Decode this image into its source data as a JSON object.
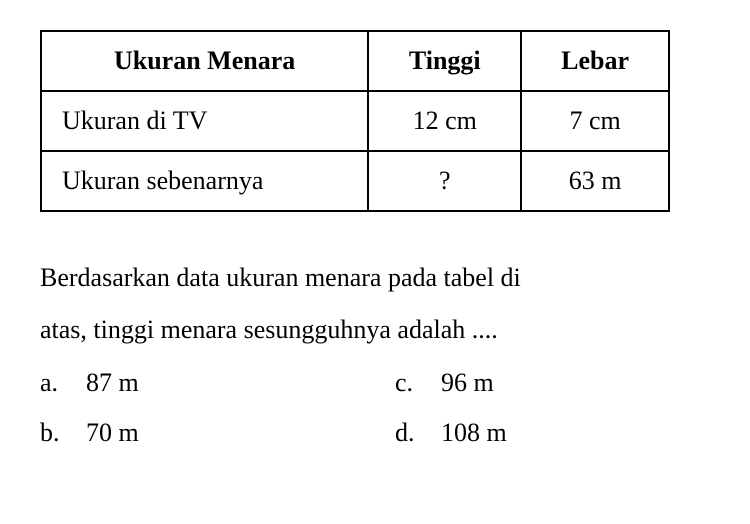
{
  "table": {
    "columns": [
      "Ukuran Menara",
      "Tinggi",
      "Lebar"
    ],
    "rows": [
      [
        "Ukuran di TV",
        "12 cm",
        "7 cm"
      ],
      [
        "Ukuran sebenarnya",
        "?",
        "63 m"
      ]
    ],
    "border_color": "#000000",
    "border_width": 2,
    "header_fontsize": 26,
    "cell_fontsize": 26,
    "col_alignments": [
      "left",
      "center",
      "center"
    ]
  },
  "question": {
    "line1": "Berdasarkan data ukuran menara pada tabel di",
    "line2": "atas, tinggi menara sesungguhnya adalah ...."
  },
  "options": {
    "a": {
      "letter": "a.",
      "text": "87 m"
    },
    "b": {
      "letter": "b.",
      "text": "70 m"
    },
    "c": {
      "letter": "c.",
      "text": "96 m"
    },
    "d": {
      "letter": "d.",
      "text": "108 m"
    }
  },
  "colors": {
    "background": "#ffffff",
    "text": "#000000",
    "border": "#000000"
  },
  "fontsize": 26
}
